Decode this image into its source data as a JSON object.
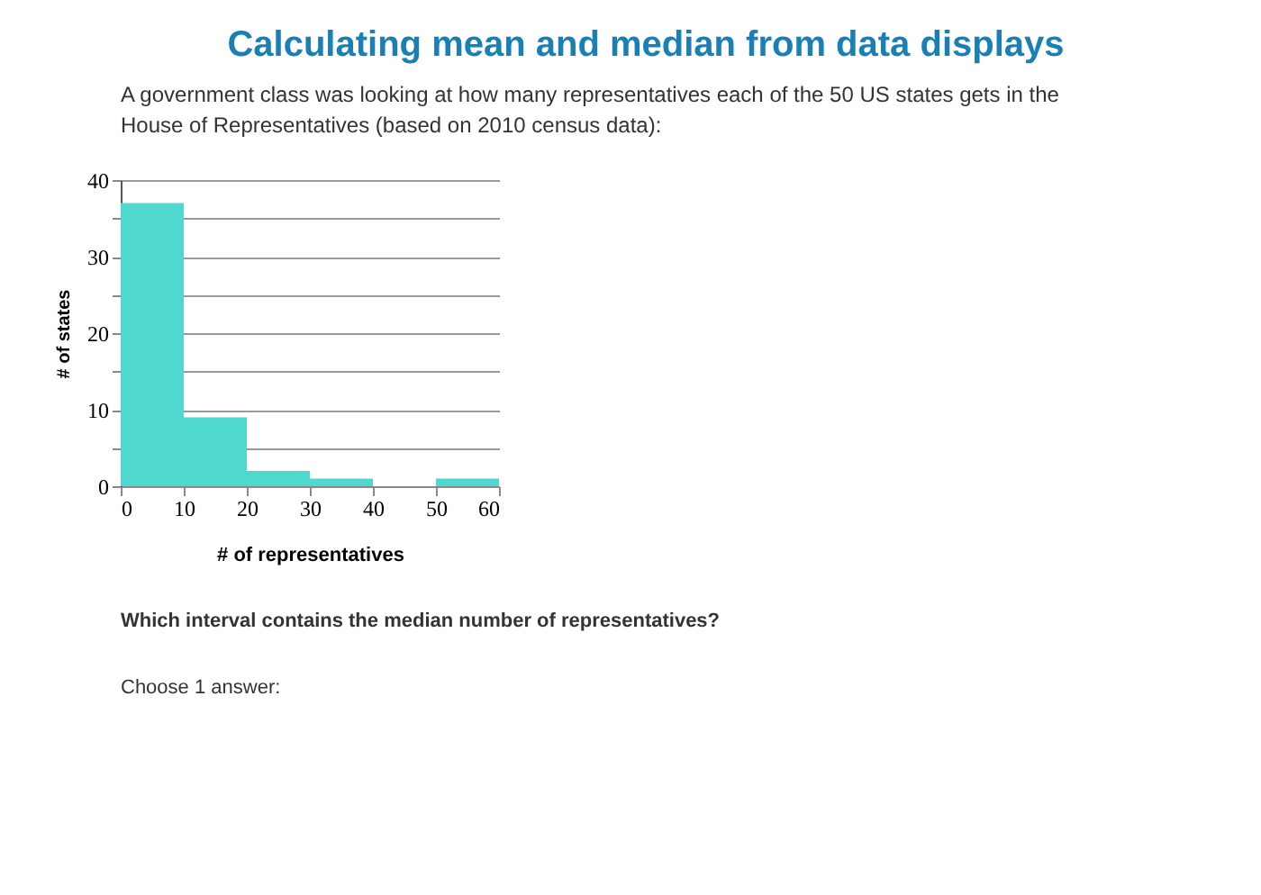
{
  "chart_data": {
    "type": "histogram",
    "title": "Calculating mean and median from data displays",
    "bins": [
      0,
      10,
      20,
      30,
      40,
      50,
      60
    ],
    "values": [
      37,
      9,
      2,
      1,
      0,
      1
    ],
    "color": "#4fd8cf",
    "xlabel": "# of representatives",
    "ylabel": "# of states",
    "xlim": [
      0,
      60
    ],
    "xticks": [
      0,
      10,
      20,
      30,
      40,
      50,
      60
    ],
    "ylim": [
      0,
      40
    ],
    "yticks": [
      0,
      {
        "value": 5,
        "label": null
      },
      10,
      {
        "value": 15,
        "label": null
      },
      20,
      {
        "value": 25,
        "label": null
      },
      30,
      {
        "value": 35,
        "label": null
      },
      40
    ],
    "grid": "y",
    "annotations": [
      "A government class was looking at how many representatives each of the 50 US states gets in the House of Representatives (based on 2010 census data):",
      "Which interval contains the median number of representatives?",
      "Choose 1 answer:"
    ]
  }
}
